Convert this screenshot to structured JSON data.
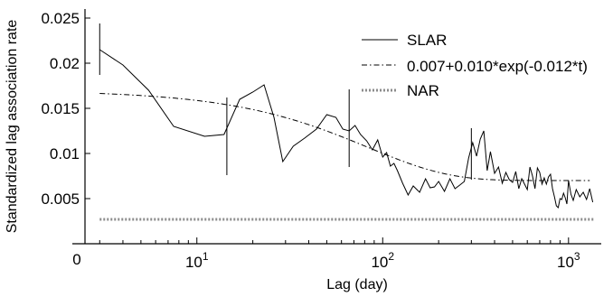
{
  "chart_data": {
    "type": "line",
    "x_scale": "log",
    "xlabel": "Lag (day)",
    "ylabel": "Standardized lag association rate",
    "xlim": [
      2.5,
      1500
    ],
    "ylim": [
      0,
      0.026
    ],
    "x_tick_labels": [
      {
        "value": 10,
        "base": "10",
        "exp": "1"
      },
      {
        "value": 100,
        "base": "10",
        "exp": "2"
      },
      {
        "value": 1000,
        "base": "10",
        "exp": "3"
      }
    ],
    "x_origin_label": "0",
    "y_ticks": [
      0.005,
      0.01,
      0.015,
      0.02,
      0.025
    ],
    "y_tick_labels": [
      "0.005",
      "0.01",
      "0.015",
      "0.02",
      "0.025"
    ],
    "legend_position": "top-right",
    "series": [
      {
        "name": "SLAR",
        "style": "solid",
        "color": "#000000",
        "x": [
          3,
          4,
          5.5,
          7.5,
          11,
          14,
          17,
          20,
          23,
          26,
          29,
          33,
          38,
          44,
          50,
          56,
          61,
          66,
          71,
          76,
          82,
          88,
          94,
          100,
          105,
          110,
          115,
          120,
          128,
          137,
          146,
          158,
          170,
          180,
          190,
          200,
          215,
          230,
          245,
          260,
          275,
          290,
          305,
          320,
          335,
          350,
          365,
          380,
          400,
          420,
          440,
          460,
          480,
          500,
          520,
          540,
          560,
          580,
          600,
          620,
          640,
          660,
          680,
          700,
          720,
          740,
          760,
          780,
          800,
          820,
          840,
          860,
          880,
          900,
          920,
          940,
          960,
          980,
          1000,
          1030,
          1060,
          1100,
          1150,
          1200,
          1250,
          1300,
          1350
        ],
        "y": [
          0.0215,
          0.0198,
          0.017,
          0.013,
          0.0119,
          0.0121,
          0.016,
          0.0168,
          0.0176,
          0.014,
          0.0091,
          0.0108,
          0.0117,
          0.0127,
          0.0143,
          0.014,
          0.0127,
          0.0125,
          0.0131,
          0.0121,
          0.0114,
          0.0104,
          0.0115,
          0.0096,
          0.0101,
          0.0086,
          0.0089,
          0.0081,
          0.0067,
          0.0054,
          0.0064,
          0.0057,
          0.0072,
          0.0062,
          0.0063,
          0.0069,
          0.0058,
          0.0072,
          0.0061,
          0.0065,
          0.0069,
          0.0095,
          0.0112,
          0.0097,
          0.0116,
          0.0125,
          0.0081,
          0.0102,
          0.0078,
          0.0085,
          0.0067,
          0.0079,
          0.0071,
          0.0068,
          0.008,
          0.0061,
          0.0072,
          0.0066,
          0.006,
          0.0085,
          0.0075,
          0.0061,
          0.0084,
          0.0079,
          0.0066,
          0.0073,
          0.0066,
          0.0074,
          0.0077,
          0.0061,
          0.0052,
          0.0042,
          0.004,
          0.005,
          0.0049,
          0.0056,
          0.0051,
          0.0044,
          0.007,
          0.0055,
          0.0048,
          0.006,
          0.0052,
          0.0057,
          0.0049,
          0.0061,
          0.0046
        ],
        "error_bars": [
          {
            "x": 3,
            "low": 0.0187,
            "high": 0.0244
          },
          {
            "x": 14.5,
            "low": 0.0076,
            "high": 0.0162
          },
          {
            "x": 66,
            "low": 0.0085,
            "high": 0.0171
          },
          {
            "x": 300,
            "low": 0.0071,
            "high": 0.0128
          }
        ]
      },
      {
        "name": "0.007+0.010*exp(-0.012*t)",
        "style": "dashdot",
        "color": "#000000",
        "model": {
          "a": 0.007,
          "b": 0.01,
          "k": 0.012
        }
      },
      {
        "name": "NAR",
        "style": "dotted",
        "color": "#8c8c8c",
        "value": 0.0027
      }
    ]
  }
}
